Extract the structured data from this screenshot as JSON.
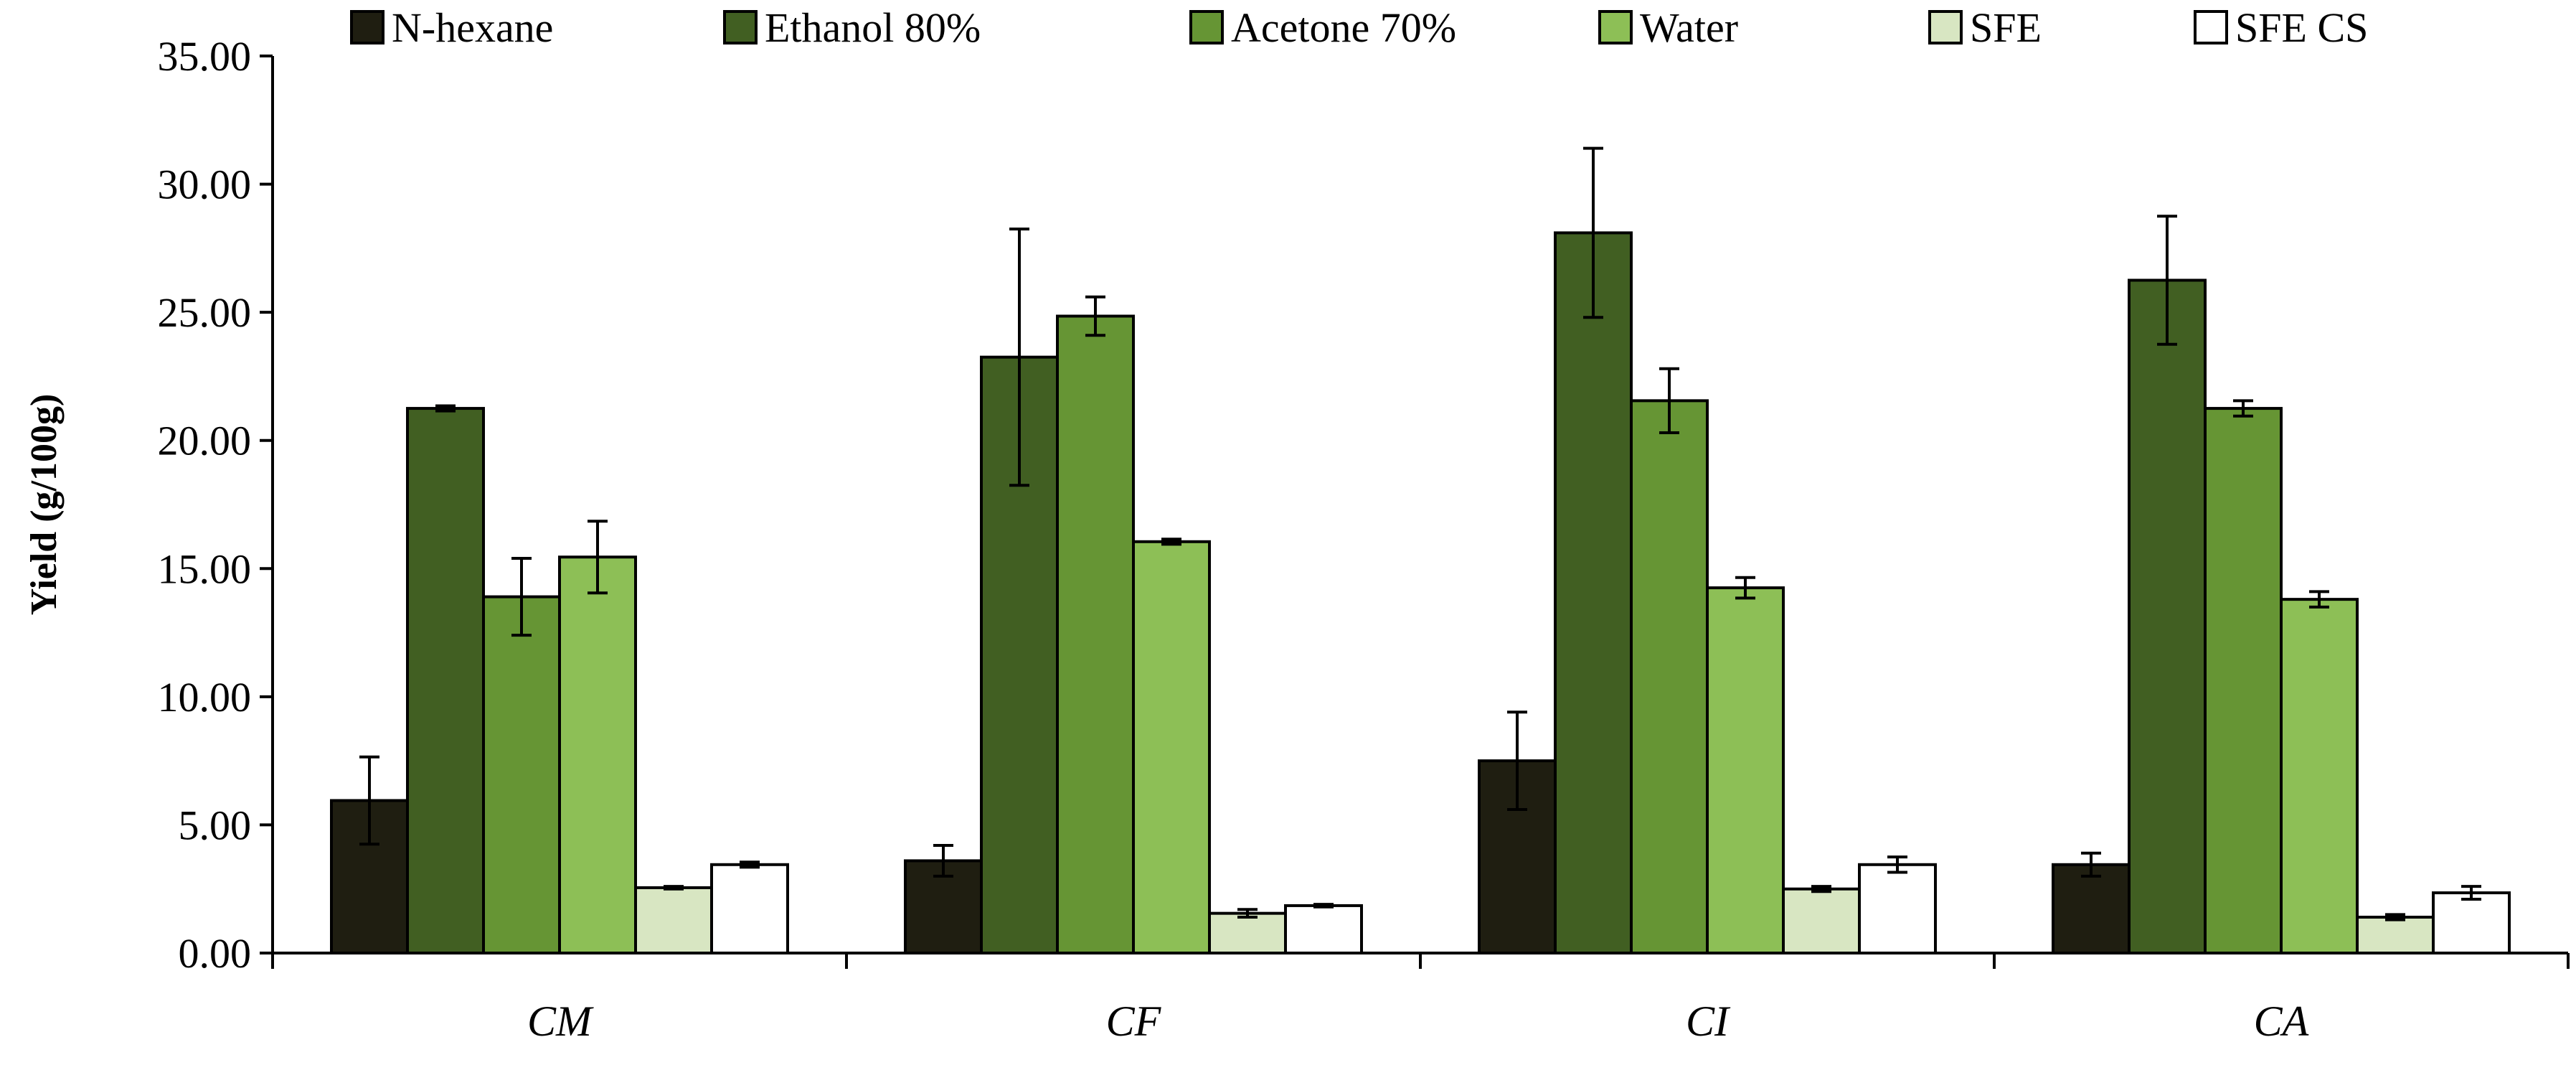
{
  "chart_data": {
    "type": "bar",
    "title": "",
    "xlabel": "",
    "ylabel": "Yield (g/100g)",
    "ylim": [
      0,
      35
    ],
    "yticks": [
      "0.00",
      "5.00",
      "10.00",
      "15.00",
      "20.00",
      "25.00",
      "30.00",
      "35.00"
    ],
    "grid": false,
    "legend_position": "top",
    "categories": [
      "CM",
      "CF",
      "CI",
      "CA"
    ],
    "series": [
      {
        "name": "N-hexane",
        "color": "#1f1e11",
        "values": [
          5.95,
          3.6,
          7.5,
          3.45
        ],
        "errors": [
          1.7,
          0.6,
          1.9,
          0.45
        ]
      },
      {
        "name": "Ethanol 80%",
        "color": "#415f22",
        "values": [
          21.25,
          23.25,
          28.1,
          26.25
        ],
        "errors": [
          0.1,
          5.0,
          3.3,
          2.5
        ]
      },
      {
        "name": "Acetone 70%",
        "color": "#669534",
        "values": [
          13.9,
          24.85,
          21.55,
          21.25
        ],
        "errors": [
          1.5,
          0.75,
          1.25,
          0.3
        ]
      },
      {
        "name": "Water",
        "color": "#8dbf56",
        "values": [
          15.45,
          16.05,
          14.25,
          13.8
        ],
        "errors": [
          1.4,
          0.1,
          0.4,
          0.3
        ]
      },
      {
        "name": "SFE",
        "color": "#d8e6c2",
        "values": [
          2.55,
          1.55,
          2.5,
          1.4
        ],
        "errors": [
          0.05,
          0.15,
          0.1,
          0.1
        ]
      },
      {
        "name": "SFE CS",
        "color": "#ffffff",
        "values": [
          3.45,
          1.85,
          3.45,
          2.35
        ],
        "errors": [
          0.1,
          0.05,
          0.3,
          0.25
        ]
      }
    ]
  }
}
